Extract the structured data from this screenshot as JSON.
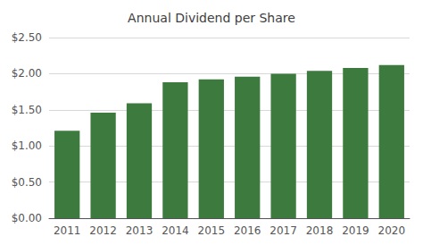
{
  "chart_data": {
    "type": "bar",
    "title": "Annual Dividend per Share",
    "categories": [
      "2011",
      "2012",
      "2013",
      "2014",
      "2015",
      "2016",
      "2017",
      "2018",
      "2019",
      "2020"
    ],
    "values": [
      1.21,
      1.46,
      1.59,
      1.88,
      1.92,
      1.96,
      2.0,
      2.04,
      2.08,
      2.12
    ],
    "color": "#3d7a3d",
    "ylim": [
      0,
      2.5
    ],
    "yticks": [
      {
        "value": 0,
        "label": "$0.00"
      },
      {
        "value": 0.5,
        "label": "$0.50"
      },
      {
        "value": 1.0,
        "label": "$1.00"
      },
      {
        "value": 1.5,
        "label": "$1.50"
      },
      {
        "value": 2.0,
        "label": "$2.00"
      },
      {
        "value": 2.5,
        "label": "$2.50"
      }
    ],
    "grid": true
  }
}
